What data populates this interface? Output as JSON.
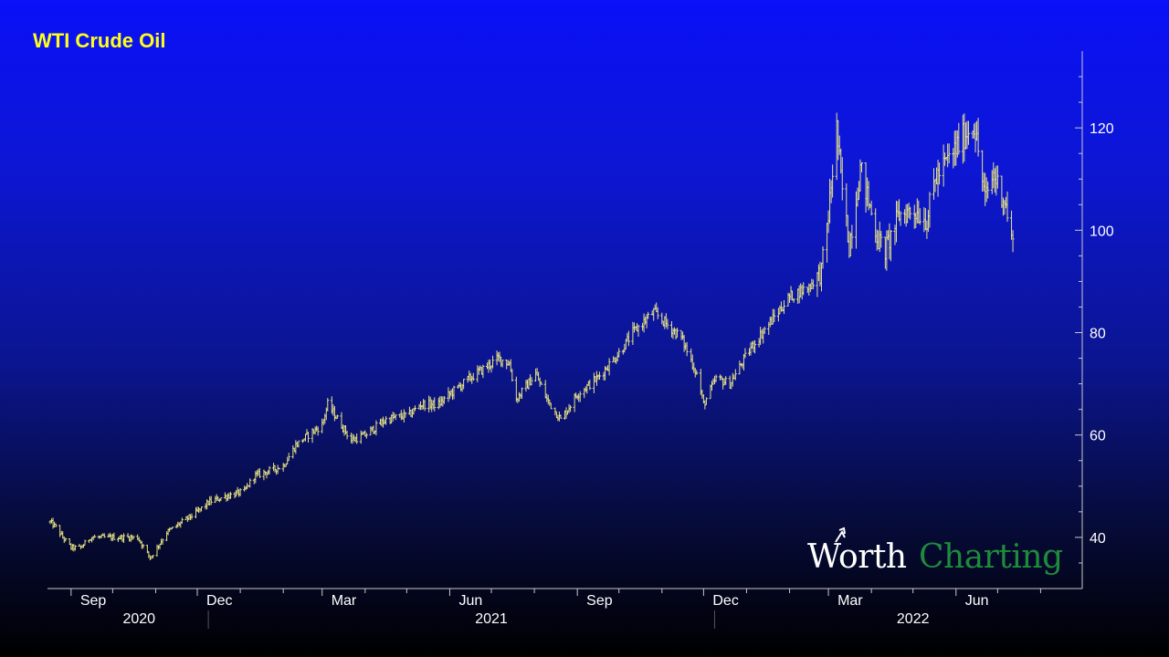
{
  "colors": {
    "series": "#e8e486",
    "title": "#ffff1a",
    "axis": "#c8c8c8",
    "watermark_accent": "#1f8a3c"
  },
  "watermark": {
    "part1": "Worth",
    "part2": "Charting"
  },
  "chart_data": {
    "type": "line",
    "style": "ohlc-bars",
    "title": "WTI Crude Oil",
    "xlabel": "",
    "ylabel": "",
    "x_range": [
      "2020-08-15",
      "2022-08-31"
    ],
    "ylim": [
      30,
      135
    ],
    "y_axis_side": "right",
    "y_ticks": [
      40,
      60,
      80,
      100,
      120
    ],
    "y_tick_labels": [
      "40",
      "60",
      "80",
      "100",
      "120"
    ],
    "x_ticks": [
      {
        "date": "2020-09-01",
        "label": "Sep"
      },
      {
        "date": "2020-12-01",
        "label": "Dec"
      },
      {
        "date": "2021-03-01",
        "label": "Mar"
      },
      {
        "date": "2021-06-01",
        "label": "Jun"
      },
      {
        "date": "2021-09-01",
        "label": "Sep"
      },
      {
        "date": "2021-12-01",
        "label": "Dec"
      },
      {
        "date": "2022-03-01",
        "label": "Mar"
      },
      {
        "date": "2022-06-01",
        "label": "Jun"
      }
    ],
    "x_minor_ticks": [
      "2020-10-01",
      "2020-11-01",
      "2021-01-01",
      "2021-02-01",
      "2021-04-01",
      "2021-05-01",
      "2021-07-01",
      "2021-08-01",
      "2021-10-01",
      "2021-11-01",
      "2022-01-01",
      "2022-02-01",
      "2022-04-01",
      "2022-05-01",
      "2022-07-01",
      "2022-08-01"
    ],
    "years": [
      {
        "label": "2020",
        "center": "2020-10-20"
      },
      {
        "label": "2021",
        "center": "2021-07-01"
      },
      {
        "label": "2022",
        "center": "2022-05-01"
      }
    ],
    "year_separators": [
      "2021-01-01",
      "2022-01-01"
    ],
    "grid": false,
    "legend": "none",
    "series": [
      {
        "x": [
          "2020-08-17",
          "2020-08-21",
          "2020-08-26",
          "2020-09-01",
          "2020-09-08",
          "2020-09-15",
          "2020-09-22",
          "2020-10-01",
          "2020-10-09",
          "2020-10-19",
          "2020-10-28",
          "2020-11-02",
          "2020-11-09",
          "2020-11-20",
          "2020-12-01",
          "2020-12-10",
          "2020-12-21",
          "2021-01-04",
          "2021-01-11",
          "2021-01-22",
          "2021-02-01",
          "2021-02-10",
          "2021-02-19",
          "2021-03-01",
          "2021-03-05",
          "2021-03-10",
          "2021-03-22",
          "2021-04-01",
          "2021-04-16",
          "2021-05-03",
          "2021-05-11",
          "2021-05-24",
          "2021-06-01",
          "2021-06-15",
          "2021-07-01",
          "2021-07-06",
          "2021-07-14",
          "2021-07-19",
          "2021-08-02",
          "2021-08-10",
          "2021-08-20",
          "2021-09-01",
          "2021-09-15",
          "2021-10-01",
          "2021-10-11",
          "2021-10-26",
          "2021-11-03",
          "2021-11-15",
          "2021-11-26",
          "2021-12-01",
          "2021-12-10",
          "2021-12-20",
          "2022-01-04",
          "2022-01-18",
          "2022-02-01",
          "2022-02-15",
          "2022-02-24",
          "2022-03-01",
          "2022-03-07",
          "2022-03-10",
          "2022-03-16",
          "2022-03-24",
          "2022-04-06",
          "2022-04-11",
          "2022-04-21",
          "2022-05-02",
          "2022-05-11",
          "2022-05-17",
          "2022-06-01",
          "2022-06-08",
          "2022-06-14",
          "2022-06-22",
          "2022-06-28",
          "2022-07-06",
          "2022-07-12"
        ],
        "y": [
          43,
          42,
          40,
          38,
          38,
          40,
          40,
          40,
          40,
          40,
          36,
          38,
          41,
          43,
          45,
          47,
          48,
          49,
          52,
          53,
          54,
          58,
          60,
          62,
          66,
          64,
          59,
          60,
          63,
          64,
          66,
          66,
          68,
          71,
          74,
          75,
          74,
          67,
          72,
          67,
          63,
          68,
          71,
          76,
          80,
          84,
          82,
          79,
          72,
          66,
          71,
          70,
          77,
          82,
          87,
          89,
          92,
          103,
          120,
          110,
          97,
          112,
          98,
          96,
          103,
          104,
          102,
          110,
          116,
          119,
          121,
          106,
          111,
          106,
          97
        ]
      }
    ]
  }
}
